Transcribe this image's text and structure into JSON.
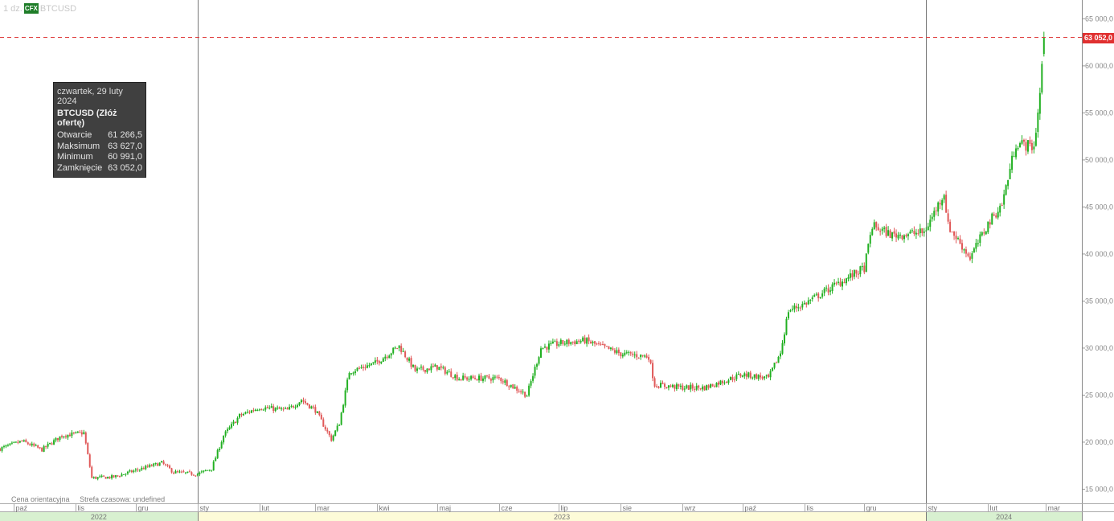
{
  "header": {
    "interval": "1 dz.",
    "badge": "CFX",
    "symbol": "BTCUSD"
  },
  "tooltip": {
    "date": "czwartek, 29 luty 2024",
    "name": "BTCUSD (Złóż ofertę)",
    "rows": [
      {
        "label": "Otwarcie",
        "value": "61 266,5"
      },
      {
        "label": "Maksimum",
        "value": "63 627,0"
      },
      {
        "label": "Minimum",
        "value": "60 991,0"
      },
      {
        "label": "Zamknięcie",
        "value": "63 052,0"
      }
    ]
  },
  "footnote": {
    "price_note": "Cena orientacyjna",
    "timezone": "Strefa czasowa: undefined"
  },
  "last_price_label": "63 052,0",
  "colors": {
    "up": "#22b022",
    "down": "#e05858",
    "reference_line": "#e04040",
    "grid": "#dcdcdc",
    "year_2022": "#d8f0d0",
    "year_2023": "#fdfbd8",
    "year_2024": "#d8f0d0"
  },
  "chart_data": {
    "type": "candlestick",
    "symbol": "BTCUSD",
    "ylim": [
      13500,
      67000
    ],
    "y_ticks": [
      15000,
      20000,
      25000,
      30000,
      35000,
      40000,
      45000,
      50000,
      55000,
      60000,
      65000
    ],
    "y_tick_labels": [
      "15 000,0",
      "20 000,0",
      "25 000,0",
      "30 000,0",
      "35 000,0",
      "40 000,0",
      "45 000,0",
      "50 000,0",
      "55 000,0",
      "60 000,0",
      "65 000,0"
    ],
    "reference_line": 63052,
    "months": [
      {
        "label": "paź",
        "date": "2022-10-01"
      },
      {
        "label": "lis",
        "date": "2022-11-01"
      },
      {
        "label": "gru",
        "date": "2022-12-01"
      },
      {
        "label": "sty",
        "date": "2023-01-01"
      },
      {
        "label": "lut",
        "date": "2023-02-01"
      },
      {
        "label": "mar",
        "date": "2023-03-01"
      },
      {
        "label": "kwi",
        "date": "2023-04-01"
      },
      {
        "label": "maj",
        "date": "2023-05-01"
      },
      {
        "label": "cze",
        "date": "2023-06-01"
      },
      {
        "label": "lip",
        "date": "2023-07-01"
      },
      {
        "label": "sie",
        "date": "2023-08-01"
      },
      {
        "label": "wrz",
        "date": "2023-09-01"
      },
      {
        "label": "paź",
        "date": "2023-10-01"
      },
      {
        "label": "lis",
        "date": "2023-11-01"
      },
      {
        "label": "gru",
        "date": "2023-12-01"
      },
      {
        "label": "sty",
        "date": "2024-01-01"
      },
      {
        "label": "lut",
        "date": "2024-02-01"
      },
      {
        "label": "mar",
        "date": "2024-03-01"
      }
    ],
    "years": [
      {
        "label": "2022",
        "from": "2022-09-24",
        "to": "2023-01-01"
      },
      {
        "label": "2023",
        "from": "2023-01-01",
        "to": "2024-01-01"
      },
      {
        "label": "2024",
        "from": "2024-01-01",
        "to": "2024-03-19"
      }
    ],
    "x_range": [
      "2022-09-24",
      "2024-03-19"
    ],
    "close_anchors": [
      [
        "2022-09-24",
        19300
      ],
      [
        "2022-10-05",
        20100
      ],
      [
        "2022-10-15",
        19200
      ],
      [
        "2022-10-25",
        20700
      ],
      [
        "2022-11-05",
        21000
      ],
      [
        "2022-11-09",
        16200
      ],
      [
        "2022-11-20",
        16300
      ],
      [
        "2022-12-01",
        17000
      ],
      [
        "2022-12-14",
        17800
      ],
      [
        "2022-12-20",
        16800
      ],
      [
        "2023-01-01",
        16600
      ],
      [
        "2023-01-08",
        17200
      ],
      [
        "2023-01-14",
        20700
      ],
      [
        "2023-01-22",
        22800
      ],
      [
        "2023-02-01",
        23700
      ],
      [
        "2023-02-15",
        23400
      ],
      [
        "2023-02-22",
        24500
      ],
      [
        "2023-03-01",
        23400
      ],
      [
        "2023-03-09",
        20300
      ],
      [
        "2023-03-13",
        22000
      ],
      [
        "2023-03-18",
        27500
      ],
      [
        "2023-03-31",
        28400
      ],
      [
        "2023-04-12",
        30200
      ],
      [
        "2023-04-20",
        27600
      ],
      [
        "2023-05-01",
        28000
      ],
      [
        "2023-05-12",
        26800
      ],
      [
        "2023-06-01",
        26800
      ],
      [
        "2023-06-15",
        25000
      ],
      [
        "2023-06-22",
        30000
      ],
      [
        "2023-07-01",
        30500
      ],
      [
        "2023-07-14",
        30800
      ],
      [
        "2023-08-01",
        29400
      ],
      [
        "2023-08-15",
        29100
      ],
      [
        "2023-08-18",
        26100
      ],
      [
        "2023-09-01",
        25800
      ],
      [
        "2023-09-12",
        25800
      ],
      [
        "2023-10-01",
        27200
      ],
      [
        "2023-10-14",
        26800
      ],
      [
        "2023-10-20",
        29500
      ],
      [
        "2023-10-24",
        34000
      ],
      [
        "2023-11-01",
        34700
      ],
      [
        "2023-11-15",
        36500
      ],
      [
        "2023-12-01",
        38500
      ],
      [
        "2023-12-05",
        43000
      ],
      [
        "2023-12-15",
        42000
      ],
      [
        "2023-12-31",
        42300
      ],
      [
        "2024-01-10",
        46500
      ],
      [
        "2024-01-12",
        43000
      ],
      [
        "2024-01-23",
        39600
      ],
      [
        "2024-02-01",
        43200
      ],
      [
        "2024-02-08",
        45300
      ],
      [
        "2024-02-15",
        51800
      ],
      [
        "2024-02-24",
        51400
      ],
      [
        "2024-02-27",
        57000
      ],
      [
        "2024-02-29",
        63052
      ]
    ]
  }
}
